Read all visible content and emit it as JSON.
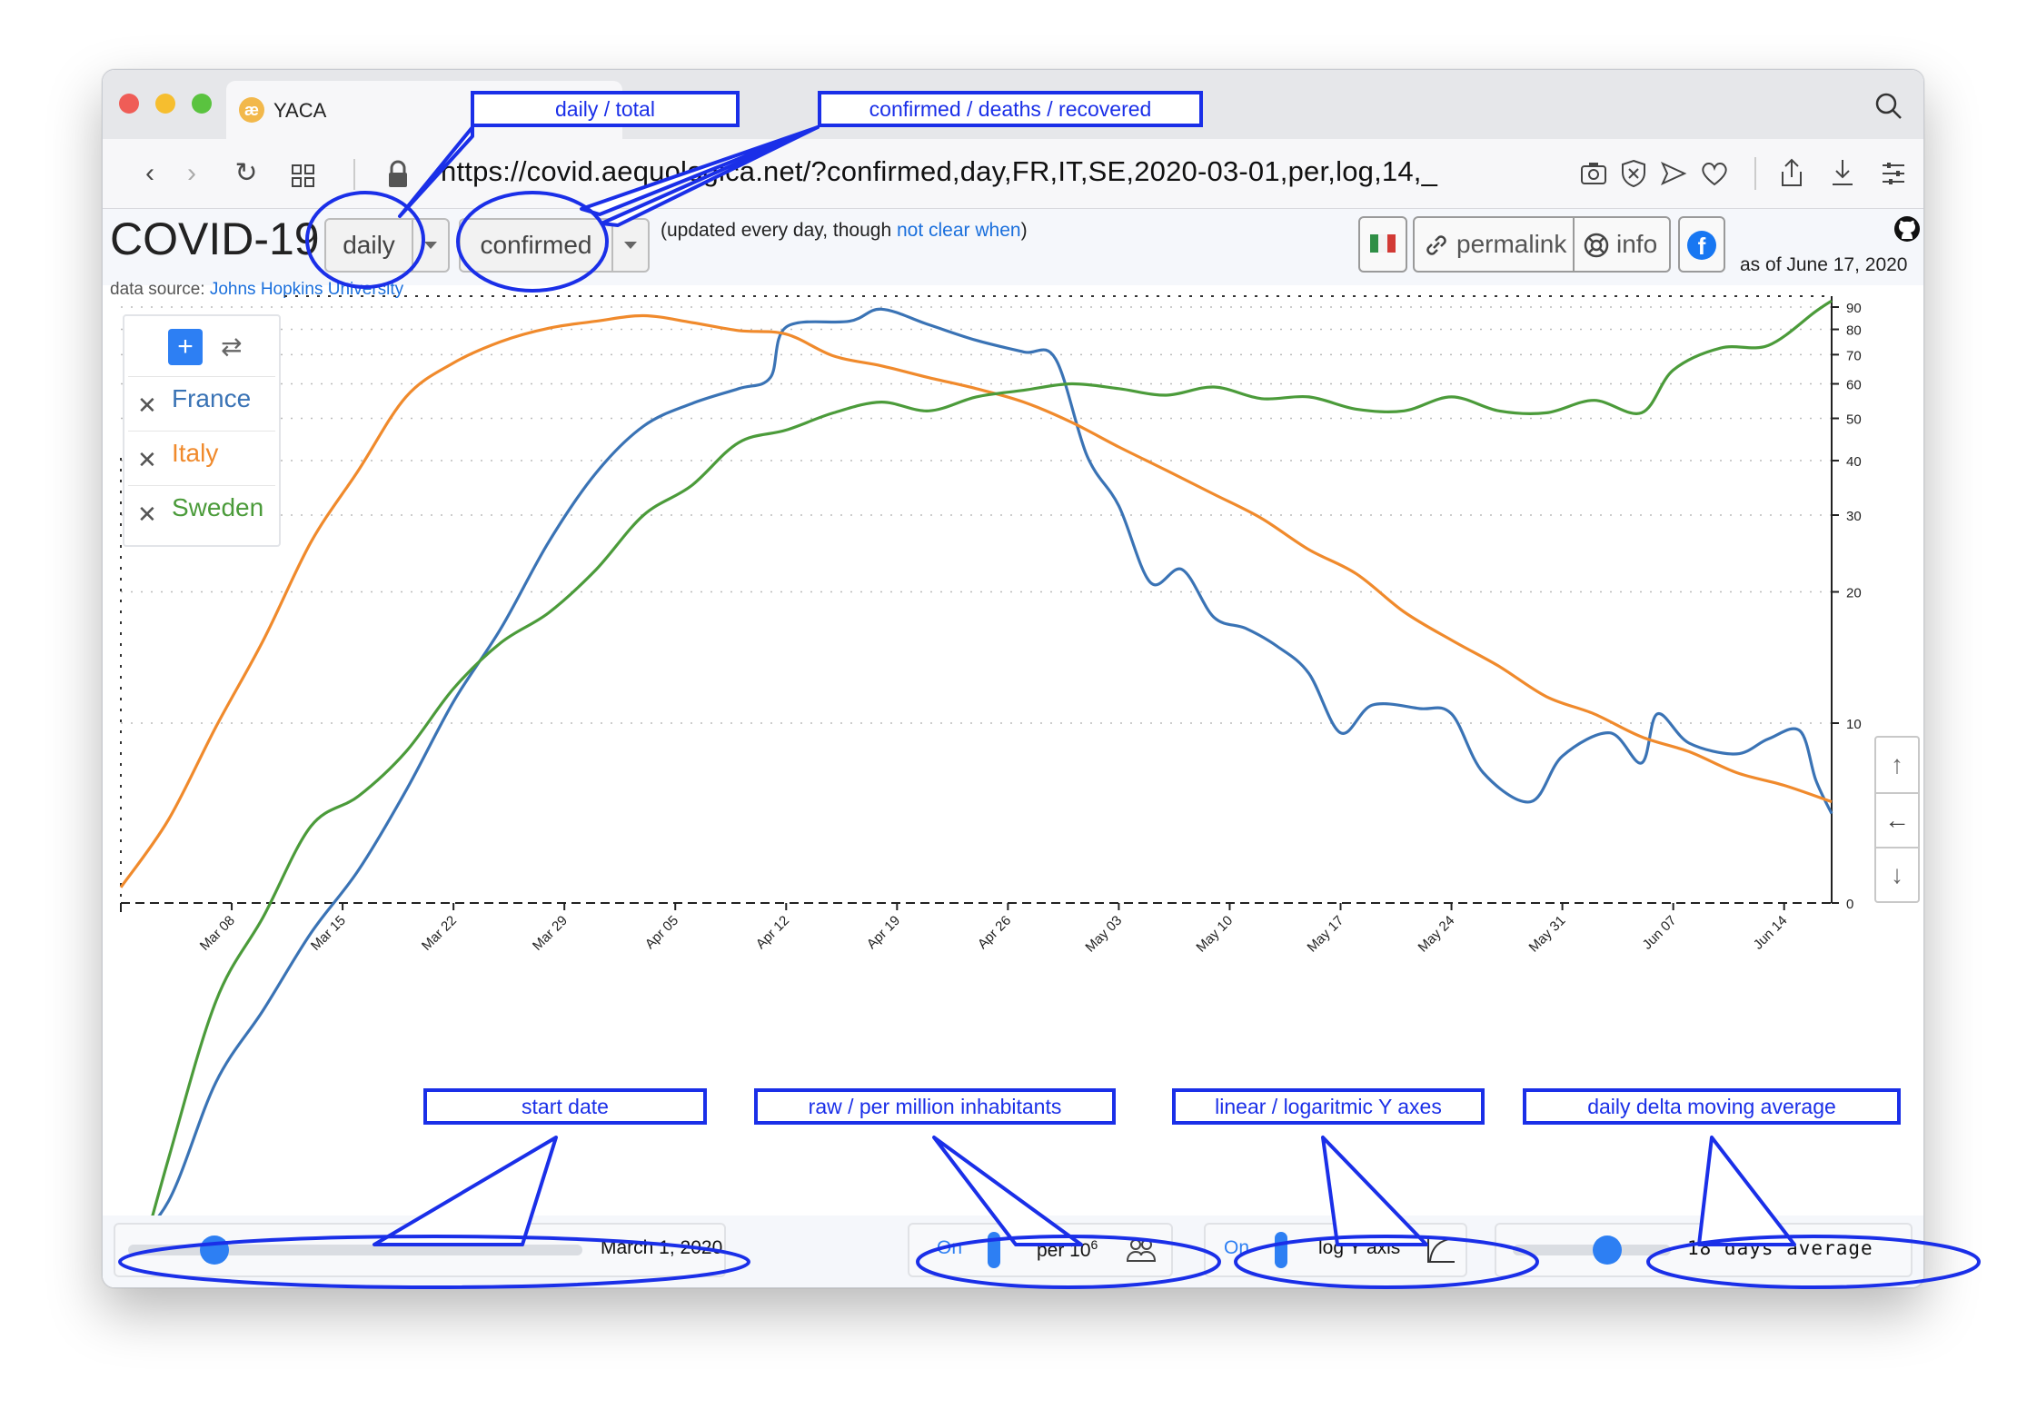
{
  "browser": {
    "tab_title": "YACA",
    "tab_icon": "yaca-logo-icon",
    "url": "https://covid.aequologica.net/?confirmed,day,FR,IT,SE,2020-03-01,per,log,14,_"
  },
  "header": {
    "title": "COVID-19",
    "mode_select": "daily",
    "metric_select": "confirmed",
    "update_note_prefix": "(updated every day, though ",
    "update_note_link": "not clear when",
    "update_note_suffix": ")",
    "data_source_prefix": "data source: ",
    "data_source_link": "Johns Hopkins University",
    "permalink_label": "permalink",
    "info_label": "info",
    "as_of": "as of June 17, 2020",
    "flag_icon": "italian-flag-icon",
    "github_icon": "github-icon",
    "facebook_icon": "facebook-icon"
  },
  "legend": {
    "countries": [
      {
        "name": "France",
        "color": "#3a73b5"
      },
      {
        "name": "Italy",
        "color": "#f08a2c"
      },
      {
        "name": "Sweden",
        "color": "#4b9b3a"
      }
    ]
  },
  "controls": {
    "start_date": "March 1, 2020",
    "start_date_level": 0.19,
    "per_toggle": "On",
    "per_label": "per 10",
    "per_exp": "6",
    "log_toggle": "On",
    "log_label": "log Y axis",
    "average_label": "18 days average",
    "average_level": 0.6
  },
  "annotations": {
    "daily_total": "daily / total",
    "metric": "confirmed / deaths / recovered",
    "start_date": "start date",
    "raw_per_million": "raw / per million inhabitants",
    "axes": "linear / logaritmic Y axes",
    "moving_average": "daily delta moving average"
  },
  "nav_arrows": {
    "up": "↑",
    "left": "←",
    "down": "↓"
  },
  "chart_data": {
    "type": "line",
    "x_axis": "date",
    "x_start": "2020-03-01",
    "x_end": "2020-06-17",
    "x_ticks": [
      "Mar 08",
      "Mar 15",
      "Mar 22",
      "Mar 29",
      "Apr 05",
      "Apr 12",
      "Apr 19",
      "Apr 26",
      "May 03",
      "May 10",
      "May 17",
      "May 24",
      "May 31",
      "Jun 07",
      "Jun 14"
    ],
    "y_scale": "log",
    "y_ticks": [
      "0",
      "10",
      "20",
      "30",
      "40",
      "50",
      "60",
      "70",
      "80",
      "90"
    ],
    "legend_position": "top-left",
    "grid": "dotted horizontal",
    "series": [
      {
        "name": "France",
        "color": "#3a73b5",
        "points": [
          [
            "2020-03-01",
            0.6
          ],
          [
            "2020-03-04",
            0.8
          ],
          [
            "2020-03-07",
            1.5
          ],
          [
            "2020-03-10",
            2.2
          ],
          [
            "2020-03-13",
            3.3
          ],
          [
            "2020-03-16",
            4.6
          ],
          [
            "2020-03-19",
            7.0
          ],
          [
            "2020-03-22",
            11.2
          ],
          [
            "2020-03-25",
            16.5
          ],
          [
            "2020-03-28",
            26.0
          ],
          [
            "2020-03-31",
            37.5
          ],
          [
            "2020-04-03",
            48.0
          ],
          [
            "2020-04-06",
            54.0
          ],
          [
            "2020-04-09",
            58.5
          ],
          [
            "2020-04-11",
            62.0
          ],
          [
            "2020-04-12",
            81.0
          ],
          [
            "2020-04-16",
            83.5
          ],
          [
            "2020-04-18",
            89.0
          ],
          [
            "2020-04-21",
            82.0
          ],
          [
            "2020-04-24",
            75.5
          ],
          [
            "2020-04-27",
            71.0
          ],
          [
            "2020-04-29",
            68.5
          ],
          [
            "2020-05-01",
            41.0
          ],
          [
            "2020-05-03",
            31.5
          ],
          [
            "2020-05-05",
            21.0
          ],
          [
            "2020-05-07",
            22.5
          ],
          [
            "2020-05-09",
            17.5
          ],
          [
            "2020-05-11",
            16.5
          ],
          [
            "2020-05-13",
            15.0
          ],
          [
            "2020-05-15",
            13.0
          ],
          [
            "2020-05-17",
            9.5
          ],
          [
            "2020-05-19",
            11.0
          ],
          [
            "2020-05-22",
            10.8
          ],
          [
            "2020-05-24",
            10.5
          ],
          [
            "2020-05-26",
            7.7
          ],
          [
            "2020-05-29",
            6.6
          ],
          [
            "2020-05-31",
            8.4
          ],
          [
            "2020-06-03",
            9.5
          ],
          [
            "2020-06-05",
            8.1
          ],
          [
            "2020-06-06",
            10.5
          ],
          [
            "2020-06-08",
            9.0
          ],
          [
            "2020-06-11",
            8.5
          ],
          [
            "2020-06-13",
            9.2
          ],
          [
            "2020-06-15",
            9.6
          ],
          [
            "2020-06-16",
            7.4
          ],
          [
            "2020-06-17",
            6.2
          ]
        ]
      },
      {
        "name": "Italy",
        "color": "#f08a2c",
        "points": [
          [
            "2020-03-01",
            4.2
          ],
          [
            "2020-03-04",
            6.0
          ],
          [
            "2020-03-07",
            9.8
          ],
          [
            "2020-03-10",
            15.5
          ],
          [
            "2020-03-13",
            26.0
          ],
          [
            "2020-03-16",
            38.0
          ],
          [
            "2020-03-19",
            56.0
          ],
          [
            "2020-03-22",
            67.0
          ],
          [
            "2020-03-25",
            75.0
          ],
          [
            "2020-03-28",
            80.5
          ],
          [
            "2020-03-31",
            83.5
          ],
          [
            "2020-04-03",
            86.0
          ],
          [
            "2020-04-06",
            83.0
          ],
          [
            "2020-04-09",
            79.5
          ],
          [
            "2020-04-12",
            78.0
          ],
          [
            "2020-04-15",
            69.5
          ],
          [
            "2020-04-18",
            66.0
          ],
          [
            "2020-04-21",
            62.0
          ],
          [
            "2020-04-24",
            58.5
          ],
          [
            "2020-04-27",
            54.5
          ],
          [
            "2020-04-30",
            49.0
          ],
          [
            "2020-05-03",
            43.0
          ],
          [
            "2020-05-06",
            38.0
          ],
          [
            "2020-05-09",
            33.5
          ],
          [
            "2020-05-12",
            29.5
          ],
          [
            "2020-05-15",
            25.0
          ],
          [
            "2020-05-18",
            22.0
          ],
          [
            "2020-05-21",
            18.0
          ],
          [
            "2020-05-24",
            15.5
          ],
          [
            "2020-05-27",
            13.5
          ],
          [
            "2020-05-30",
            11.5
          ],
          [
            "2020-06-02",
            10.5
          ],
          [
            "2020-06-05",
            9.3
          ],
          [
            "2020-06-08",
            8.6
          ],
          [
            "2020-06-11",
            7.7
          ],
          [
            "2020-06-14",
            7.2
          ],
          [
            "2020-06-17",
            6.6
          ]
        ]
      },
      {
        "name": "Sweden",
        "color": "#4b9b3a",
        "points": [
          [
            "2020-03-01",
            0.4
          ],
          [
            "2020-03-04",
            1.0
          ],
          [
            "2020-03-07",
            2.3
          ],
          [
            "2020-03-10",
            3.6
          ],
          [
            "2020-03-13",
            5.8
          ],
          [
            "2020-03-16",
            6.8
          ],
          [
            "2020-03-19",
            8.6
          ],
          [
            "2020-03-22",
            12.0
          ],
          [
            "2020-03-25",
            15.3
          ],
          [
            "2020-03-28",
            17.9
          ],
          [
            "2020-03-31",
            22.5
          ],
          [
            "2020-04-03",
            30.0
          ],
          [
            "2020-04-06",
            35.0
          ],
          [
            "2020-04-09",
            44.0
          ],
          [
            "2020-04-12",
            47.0
          ],
          [
            "2020-04-15",
            51.5
          ],
          [
            "2020-04-18",
            54.5
          ],
          [
            "2020-04-21",
            52.0
          ],
          [
            "2020-04-24",
            56.0
          ],
          [
            "2020-04-27",
            58.0
          ],
          [
            "2020-04-30",
            60.0
          ],
          [
            "2020-05-03",
            58.5
          ],
          [
            "2020-05-06",
            56.5
          ],
          [
            "2020-05-09",
            59.0
          ],
          [
            "2020-05-12",
            55.5
          ],
          [
            "2020-05-15",
            56.0
          ],
          [
            "2020-05-18",
            52.5
          ],
          [
            "2020-05-21",
            52.0
          ],
          [
            "2020-05-24",
            56.0
          ],
          [
            "2020-05-27",
            52.0
          ],
          [
            "2020-05-30",
            51.5
          ],
          [
            "2020-06-02",
            55.0
          ],
          [
            "2020-06-05",
            51.5
          ],
          [
            "2020-06-07",
            64.5
          ],
          [
            "2020-06-10",
            72.5
          ],
          [
            "2020-06-13",
            73.5
          ],
          [
            "2020-06-16",
            88.0
          ],
          [
            "2020-06-17",
            93.0
          ]
        ]
      }
    ]
  }
}
